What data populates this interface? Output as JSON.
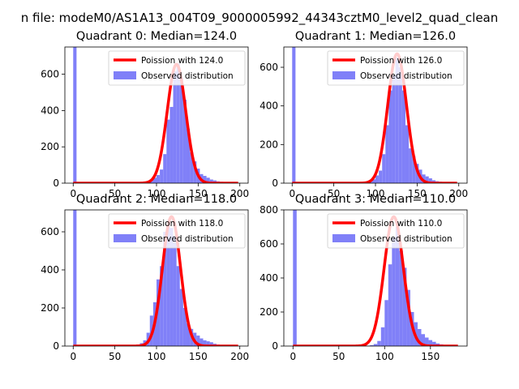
{
  "suptitle": "n file: modeM0/AS1A13_004T09_9000005992_44343cztM0_level2_quad_clean",
  "colors": {
    "hist": "#8080f8",
    "fit": "#ff0000"
  },
  "legend": {
    "observed_label": "Observed distribution",
    "location": "upper-right"
  },
  "chart_data": [
    {
      "type": "bar",
      "title": "Quadrant 0: Median=124.0",
      "fit_label": "Poission with 124.0",
      "xlim": [
        -10,
        210
      ],
      "ylim": [
        0,
        750
      ],
      "xticks": [
        0,
        50,
        100,
        150,
        200
      ],
      "yticks": [
        0,
        200,
        400,
        600
      ],
      "poisson_mean": 124,
      "poisson_peak": 655,
      "fit_x_range": [
        0,
        198
      ],
      "bin_width": 4,
      "bins": [
        0,
        4,
        8,
        12,
        16,
        20,
        24,
        28,
        32,
        36,
        40,
        44,
        48,
        52,
        56,
        60,
        64,
        68,
        72,
        76,
        80,
        84,
        88,
        92,
        96,
        100,
        104,
        108,
        112,
        116,
        120,
        124,
        128,
        132,
        136,
        140,
        144,
        148,
        152,
        156,
        160,
        164,
        168,
        172,
        176,
        180,
        184,
        188,
        192,
        196
      ],
      "counts": [
        750,
        0,
        0,
        0,
        0,
        0,
        0,
        0,
        0,
        0,
        0,
        0,
        0,
        0,
        0,
        0,
        0,
        0,
        0,
        0,
        2,
        4,
        8,
        15,
        30,
        45,
        75,
        160,
        350,
        420,
        615,
        660,
        580,
        460,
        300,
        170,
        120,
        80,
        50,
        40,
        30,
        20,
        15,
        10,
        8,
        5,
        4,
        2,
        1,
        1
      ]
    },
    {
      "type": "bar",
      "title": "Quadrant 1: Median=126.0",
      "fit_label": "Poission with 126.0",
      "xlim": [
        -10,
        210
      ],
      "ylim": [
        0,
        705
      ],
      "xticks": [
        0,
        50,
        100,
        150,
        200
      ],
      "yticks": [
        0,
        200,
        400,
        600
      ],
      "poisson_mean": 126,
      "poisson_peak": 670,
      "fit_x_range": [
        0,
        198
      ],
      "bin_width": 4,
      "bins": [
        0,
        4,
        8,
        12,
        16,
        20,
        24,
        28,
        32,
        36,
        40,
        44,
        48,
        52,
        56,
        60,
        64,
        68,
        72,
        76,
        80,
        84,
        88,
        92,
        96,
        100,
        104,
        108,
        112,
        116,
        120,
        124,
        128,
        132,
        136,
        140,
        144,
        148,
        152,
        156,
        160,
        164,
        168,
        172,
        176,
        180,
        184,
        188,
        192,
        196
      ],
      "counts": [
        705,
        0,
        0,
        0,
        0,
        0,
        0,
        0,
        0,
        0,
        0,
        0,
        0,
        0,
        0,
        0,
        0,
        0,
        0,
        0,
        1,
        3,
        6,
        10,
        20,
        40,
        65,
        150,
        300,
        480,
        560,
        650,
        600,
        480,
        300,
        180,
        140,
        100,
        70,
        45,
        35,
        25,
        15,
        10,
        8,
        5,
        4,
        2,
        1,
        1
      ]
    },
    {
      "type": "bar",
      "title": "Quadrant 2: Median=118.0",
      "fit_label": "Poission with 118.0",
      "xlim": [
        -10,
        210
      ],
      "ylim": [
        0,
        715
      ],
      "xticks": [
        0,
        50,
        100,
        150,
        200
      ],
      "yticks": [
        0,
        200,
        400,
        600
      ],
      "poisson_mean": 118,
      "poisson_peak": 680,
      "fit_x_range": [
        0,
        198
      ],
      "bin_width": 4,
      "bins": [
        0,
        4,
        8,
        12,
        16,
        20,
        24,
        28,
        32,
        36,
        40,
        44,
        48,
        52,
        56,
        60,
        64,
        68,
        72,
        76,
        80,
        84,
        88,
        92,
        96,
        100,
        104,
        108,
        112,
        116,
        120,
        124,
        128,
        132,
        136,
        140,
        144,
        148,
        152,
        156,
        160,
        164,
        168,
        172,
        176,
        180,
        184,
        188,
        192,
        196
      ],
      "counts": [
        715,
        0,
        0,
        0,
        0,
        0,
        0,
        0,
        0,
        0,
        0,
        0,
        0,
        0,
        0,
        0,
        0,
        1,
        3,
        8,
        15,
        30,
        70,
        160,
        230,
        350,
        420,
        600,
        640,
        620,
        580,
        420,
        300,
        200,
        120,
        90,
        70,
        55,
        40,
        30,
        25,
        20,
        12,
        8,
        5,
        4,
        3,
        2,
        1,
        1
      ]
    },
    {
      "type": "bar",
      "title": "Quadrant 3: Median=110.0",
      "fit_label": "Poission with 110.0",
      "xlim": [
        -10,
        190
      ],
      "ylim": [
        0,
        800
      ],
      "xticks": [
        0,
        50,
        100,
        150
      ],
      "yticks": [
        0,
        200,
        400,
        600,
        800
      ],
      "poisson_mean": 110,
      "poisson_peak": 760,
      "fit_x_range": [
        0,
        180
      ],
      "bin_width": 4,
      "bins": [
        0,
        4,
        8,
        12,
        16,
        20,
        24,
        28,
        32,
        36,
        40,
        44,
        48,
        52,
        56,
        60,
        64,
        68,
        72,
        76,
        80,
        84,
        88,
        92,
        96,
        100,
        104,
        108,
        112,
        116,
        120,
        124,
        128,
        132,
        136,
        140,
        144,
        148,
        152,
        156,
        160,
        164,
        168,
        172,
        176
      ],
      "counts": [
        800,
        0,
        0,
        0,
        0,
        0,
        0,
        0,
        0,
        0,
        0,
        0,
        0,
        0,
        0,
        0,
        0,
        0,
        0,
        0,
        2,
        5,
        12,
        30,
        110,
        270,
        480,
        640,
        700,
        560,
        460,
        330,
        200,
        140,
        100,
        70,
        50,
        35,
        25,
        15,
        10,
        6,
        4,
        2,
        1
      ]
    }
  ]
}
